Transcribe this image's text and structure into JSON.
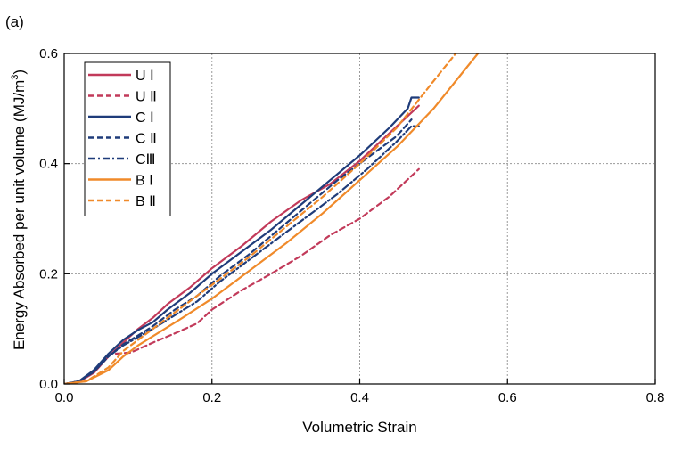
{
  "chart_data": {
    "type": "line",
    "panel_label": "(a)",
    "title": "",
    "xlabel": "Volumetric Strain",
    "ylabel_main": "Energy Absorbed per unit volume (MJ/m",
    "ylabel_sup": "3",
    "ylabel_end": ")",
    "xlim": [
      0.0,
      0.8
    ],
    "ylim": [
      0.0,
      0.6
    ],
    "xticks": [
      "0.0",
      "0.2",
      "0.4",
      "0.6",
      "0.8"
    ],
    "yticks": [
      "0.0",
      "0.2",
      "0.4",
      "0.6"
    ],
    "grid": true,
    "legend_position": "top-left",
    "series": [
      {
        "name": "U Ⅰ",
        "color": "#c23a5a",
        "dash": "solid",
        "x": [
          0.0,
          0.02,
          0.04,
          0.06,
          0.08,
          0.1,
          0.12,
          0.14,
          0.17,
          0.2,
          0.24,
          0.28,
          0.32,
          0.36,
          0.4,
          0.44,
          0.48
        ],
        "y": [
          0.0,
          0.004,
          0.02,
          0.05,
          0.075,
          0.1,
          0.12,
          0.145,
          0.175,
          0.21,
          0.25,
          0.295,
          0.333,
          0.363,
          0.405,
          0.455,
          0.505
        ]
      },
      {
        "name": "U Ⅱ",
        "color": "#c23a5a",
        "dash": "dashed",
        "x": [
          0.07,
          0.09,
          0.12,
          0.15,
          0.18,
          0.2,
          0.24,
          0.28,
          0.32,
          0.36,
          0.4,
          0.44,
          0.48
        ],
        "y": [
          0.055,
          0.057,
          0.075,
          0.092,
          0.11,
          0.135,
          0.17,
          0.2,
          0.232,
          0.27,
          0.3,
          0.34,
          0.39
        ]
      },
      {
        "name": "C Ⅰ",
        "color": "#1f3c7a",
        "dash": "solid",
        "x": [
          0.0,
          0.02,
          0.04,
          0.06,
          0.08,
          0.1,
          0.12,
          0.14,
          0.17,
          0.2,
          0.24,
          0.28,
          0.32,
          0.36,
          0.4,
          0.44,
          0.465,
          0.47,
          0.48
        ],
        "y": [
          0.0,
          0.005,
          0.025,
          0.055,
          0.08,
          0.098,
          0.112,
          0.135,
          0.165,
          0.2,
          0.24,
          0.28,
          0.325,
          0.37,
          0.415,
          0.465,
          0.5,
          0.52,
          0.52
        ]
      },
      {
        "name": "C Ⅱ",
        "color": "#1f3c7a",
        "dash": "dashed",
        "x": [
          0.0,
          0.02,
          0.04,
          0.06,
          0.08,
          0.1,
          0.12,
          0.15,
          0.18,
          0.21,
          0.25,
          0.29,
          0.33,
          0.37,
          0.41,
          0.45,
          0.47
        ],
        "y": [
          0.0,
          0.005,
          0.022,
          0.05,
          0.072,
          0.088,
          0.105,
          0.135,
          0.16,
          0.195,
          0.235,
          0.28,
          0.325,
          0.37,
          0.41,
          0.45,
          0.48
        ]
      },
      {
        "name": "CⅢ",
        "color": "#1f3c7a",
        "dash": "dashdot",
        "x": [
          0.0,
          0.02,
          0.04,
          0.06,
          0.08,
          0.1,
          0.12,
          0.15,
          0.18,
          0.21,
          0.25,
          0.29,
          0.33,
          0.37,
          0.41,
          0.45,
          0.47,
          0.48
        ],
        "y": [
          0.0,
          0.005,
          0.022,
          0.05,
          0.07,
          0.085,
          0.1,
          0.125,
          0.15,
          0.185,
          0.225,
          0.265,
          0.305,
          0.345,
          0.39,
          0.44,
          0.468,
          0.468
        ]
      },
      {
        "name": "B Ⅰ",
        "color": "#f08a2a",
        "dash": "solid",
        "x": [
          0.0,
          0.03,
          0.06,
          0.08,
          0.1,
          0.13,
          0.16,
          0.2,
          0.25,
          0.3,
          0.35,
          0.4,
          0.45,
          0.5,
          0.56
        ],
        "y": [
          0.0,
          0.005,
          0.025,
          0.05,
          0.07,
          0.095,
          0.12,
          0.155,
          0.205,
          0.255,
          0.31,
          0.37,
          0.43,
          0.5,
          0.6
        ]
      },
      {
        "name": "B Ⅱ",
        "color": "#f08a2a",
        "dash": "dashed",
        "x": [
          0.0,
          0.03,
          0.06,
          0.08,
          0.1,
          0.13,
          0.16,
          0.2,
          0.25,
          0.3,
          0.35,
          0.4,
          0.45,
          0.5,
          0.53
        ],
        "y": [
          0.0,
          0.005,
          0.03,
          0.06,
          0.08,
          0.11,
          0.14,
          0.18,
          0.23,
          0.285,
          0.34,
          0.4,
          0.465,
          0.55,
          0.6
        ]
      }
    ]
  }
}
